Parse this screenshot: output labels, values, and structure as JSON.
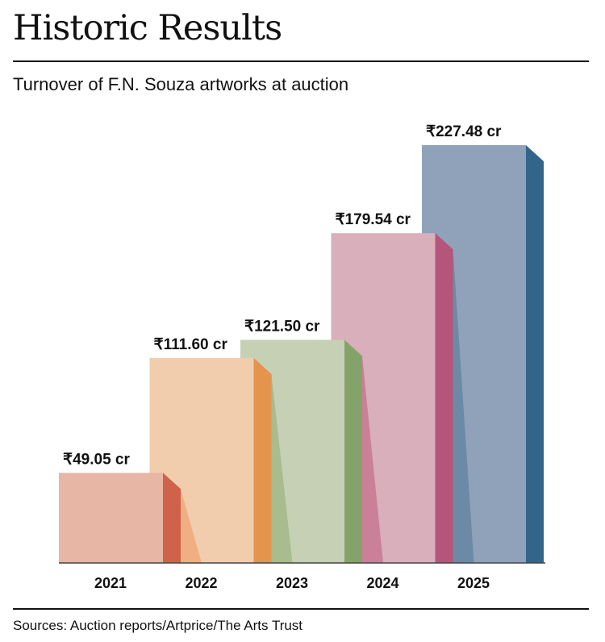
{
  "header": {
    "title": "Historic Results",
    "subtitle": "Turnover of F.N. Souza artworks at auction"
  },
  "footer": {
    "source": "Sources: Auction reports/Artprice/The Arts Trust"
  },
  "chart_data": {
    "type": "bar",
    "title": "Historic Results",
    "subtitle": "Turnover of F.N. Souza artworks at auction",
    "categories": [
      "2021",
      "2022",
      "2023",
      "2024",
      "2025"
    ],
    "values": [
      49.05,
      111.6,
      121.5,
      179.54,
      227.48
    ],
    "value_labels": [
      "₹49.05 cr",
      "₹111.60 cr",
      "₹121.50 cr",
      "₹179.54 cr",
      "₹227.48 cr"
    ],
    "xlabel": "",
    "ylabel": "",
    "ylim": [
      0,
      227.48
    ],
    "grid": false,
    "legend": "none",
    "colors": {
      "front": [
        "#e8b6a5",
        "#f1cdad",
        "#c6d0b5",
        "#d9afbb",
        "#8fa2ba"
      ],
      "side": [
        "#d0614a",
        "#e3944d",
        "#84a36a",
        "#b5557a",
        "#33648a"
      ],
      "shadow": [
        "#efaf82",
        "#a8bc8e",
        "#c98098",
        "#6c8aa6"
      ],
      "axis": "#444444",
      "text": "#111111"
    }
  }
}
